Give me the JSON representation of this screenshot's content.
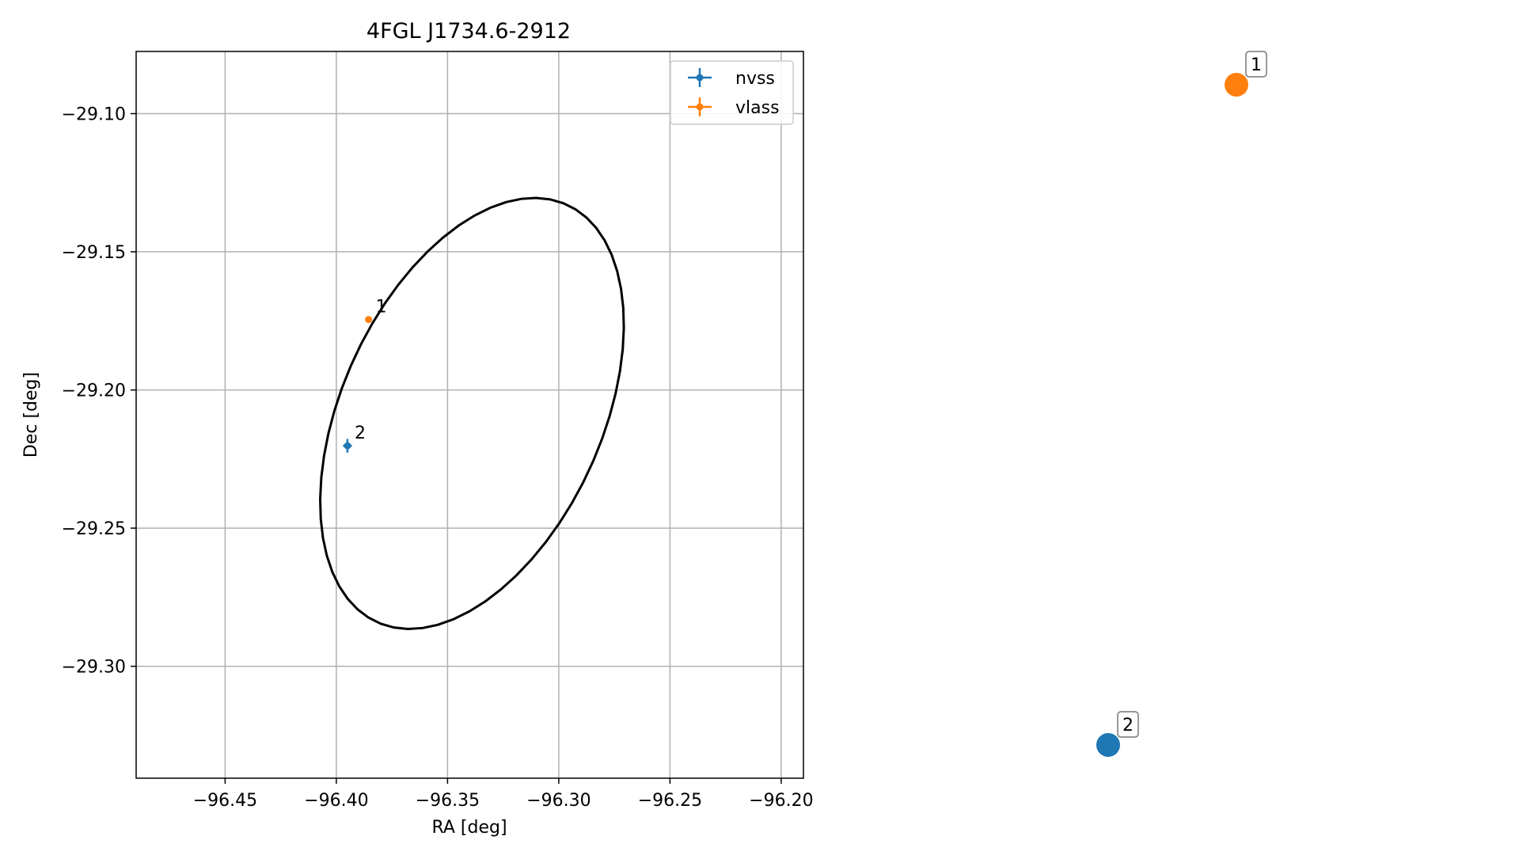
{
  "chart_data": {
    "type": "scatter",
    "title": "4FGL J1734.6-2912",
    "xlabel": "RA [deg]",
    "ylabel": "Dec [deg]",
    "xlim": [
      -96.49,
      -96.19
    ],
    "ylim": [
      -29.3405,
      -29.0775
    ],
    "x_ticks": [
      -96.45,
      -96.4,
      -96.35,
      -96.3,
      -96.25,
      -96.2
    ],
    "x_tick_labels": [
      "−96.45",
      "−96.40",
      "−96.35",
      "−96.30",
      "−96.25",
      "−96.20"
    ],
    "y_ticks": [
      -29.1,
      -29.15,
      -29.2,
      -29.25,
      -29.3
    ],
    "y_tick_labels": [
      "−29.10",
      "−29.15",
      "−29.20",
      "−29.25",
      "−29.30"
    ],
    "grid": true,
    "legend_position": "top-right",
    "series": [
      {
        "name": "nvss",
        "color": "#1f77b4",
        "points": [
          {
            "label": "2",
            "x": -96.395,
            "y": -29.2202,
            "xerr": 0.002,
            "yerr": 0.0025
          }
        ]
      },
      {
        "name": "vlass",
        "color": "#ff7f0e",
        "points": [
          {
            "label": "1",
            "x": -96.3855,
            "y": -29.1745,
            "xerr": 0.0005,
            "yerr": 0.0005
          }
        ]
      }
    ],
    "ellipse": {
      "center_x": -96.339,
      "center_y": -29.2085,
      "semi_major": 0.0876,
      "semi_minor": 0.0554,
      "angle_deg": -126,
      "color": "#000000"
    }
  },
  "side_markers": [
    {
      "label": "1",
      "color": "#ff7f0e"
    },
    {
      "label": "2",
      "color": "#1f77b4"
    }
  ]
}
